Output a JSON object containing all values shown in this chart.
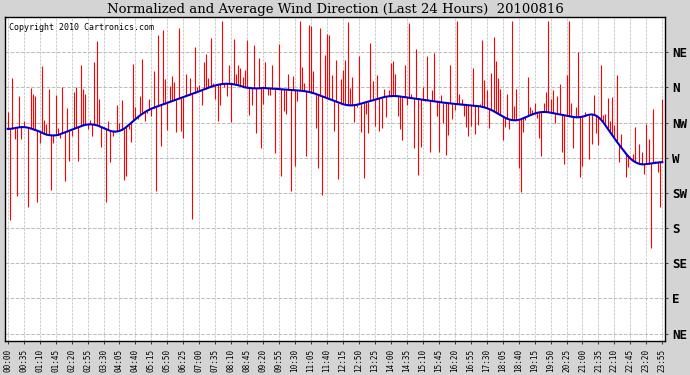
{
  "title": "Normalized and Average Wind Direction (Last 24 Hours)  20100816",
  "copyright_text": "Copyright 2010 Cartronics.com",
  "background_color": "#d4d4d4",
  "plot_bg_color": "#ffffff",
  "yaxis_labels": [
    "NE",
    "N",
    "NW",
    "W",
    "SW",
    "S",
    "SE",
    "E",
    "NE"
  ],
  "yaxis_positions": [
    360,
    315,
    270,
    225,
    180,
    135,
    90,
    45,
    0
  ],
  "ylim": [
    -10,
    405
  ],
  "grid_color": "#bbbbbb",
  "line_color_avg": "#0000cc",
  "bar_color": "#ff0000",
  "num_points": 288,
  "tick_interval_minutes": 35,
  "minutes_per_point": 5
}
